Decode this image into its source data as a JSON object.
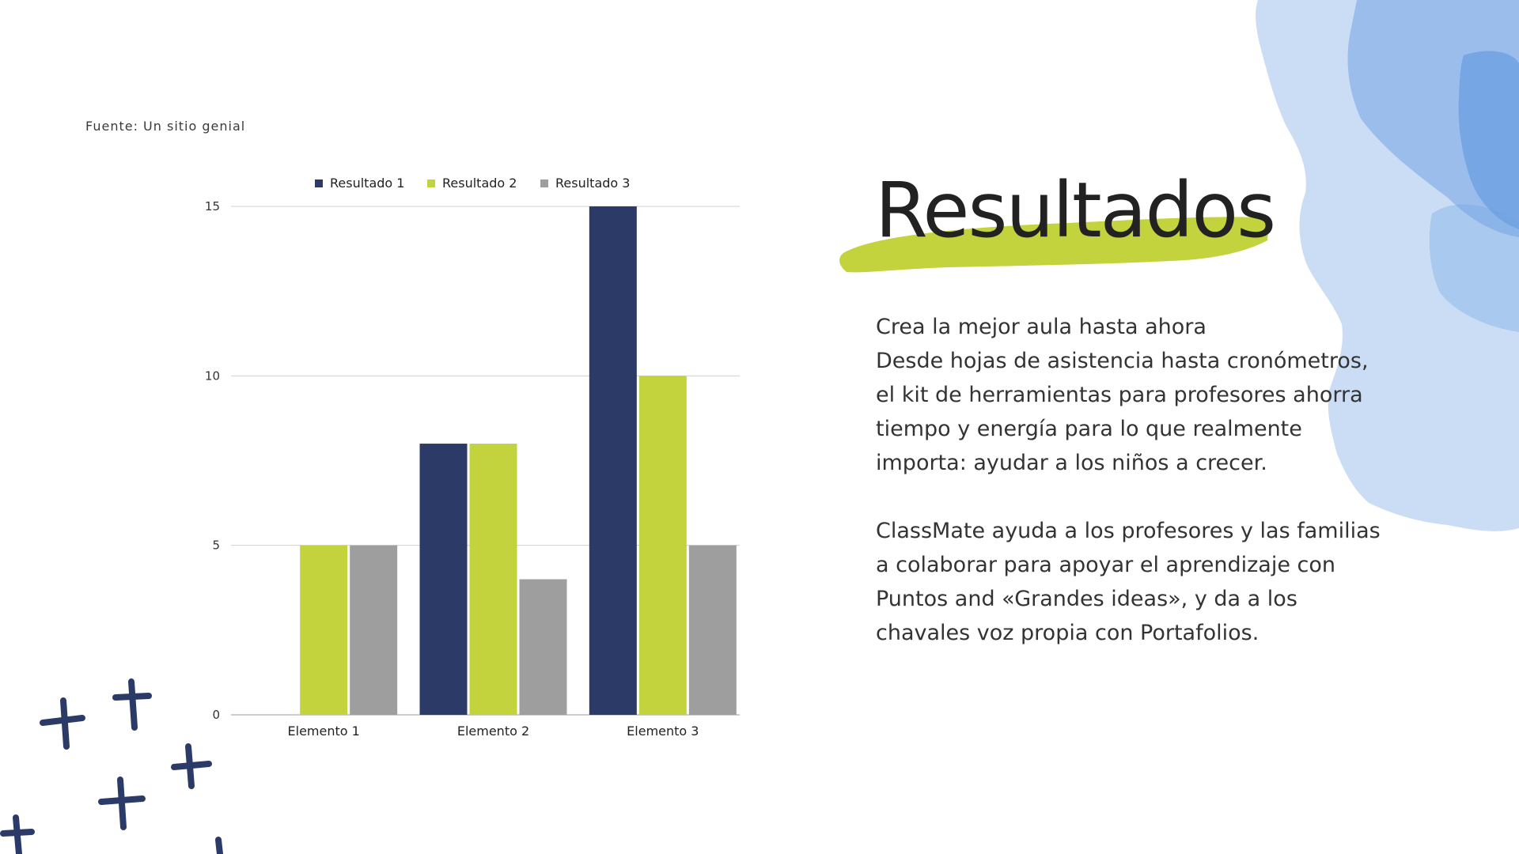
{
  "source_note": "Fuente: Un sitio genial",
  "title": "Resultados",
  "body": {
    "lines_1": [
      "Crea la mejor aula hasta ahora",
      "Desde hojas de asistencia hasta cronómetros,",
      "el kit de herramientas para profesores ahorra",
      "tiempo y energía para lo que realmente",
      "importa: ayudar a los niños a crecer."
    ],
    "lines_2": [
      "ClassMate ayuda a los profesores y las familias",
      "a colaborar para apoyar el aprendizaje  con",
      "Puntos and «Grandes ideas», y da a los",
      "chavales voz propia con Portafolios."
    ]
  },
  "colors": {
    "series_1": "#2b3a67",
    "series_2": "#c2d33e",
    "series_3": "#9e9e9e",
    "highlight": "#c2d33e",
    "watercolor": "#7aaae6",
    "crosses": "#2b3a67"
  },
  "chart_data": {
    "type": "bar",
    "categories": [
      "Elemento 1",
      "Elemento 2",
      "Elemento 3"
    ],
    "series": [
      {
        "name": "Resultado 1",
        "values": [
          0,
          8,
          15
        ]
      },
      {
        "name": "Resultado 2",
        "values": [
          5,
          8,
          10
        ]
      },
      {
        "name": "Resultado 3",
        "values": [
          5,
          4,
          5
        ]
      }
    ],
    "ylim": [
      0,
      15
    ],
    "yticks": [
      0,
      5,
      10,
      15
    ],
    "grid": true,
    "legend": "top"
  }
}
